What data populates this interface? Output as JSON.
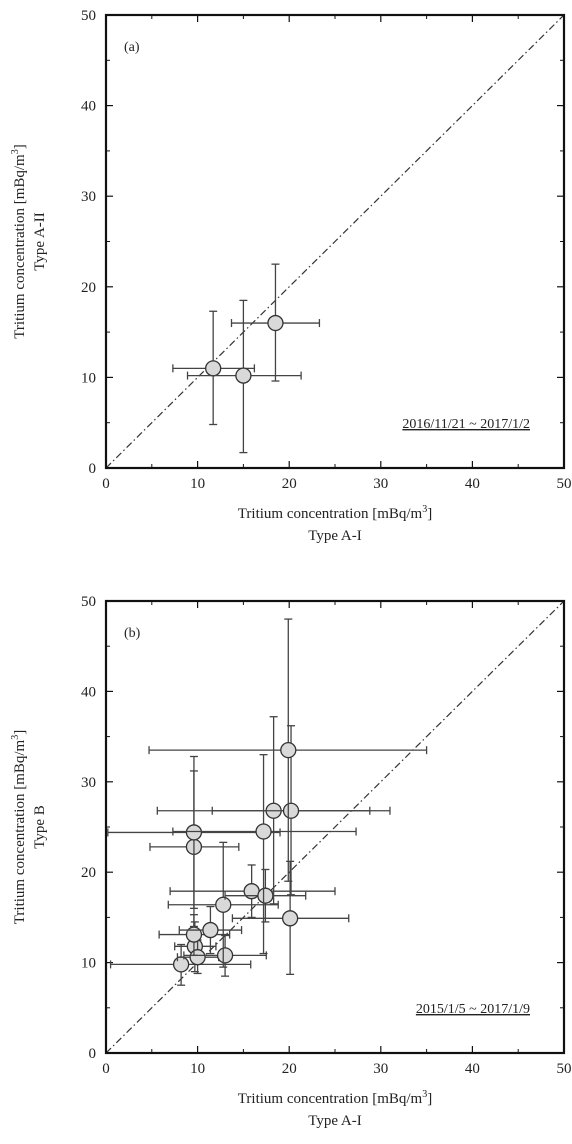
{
  "chart_data": [
    {
      "type": "scatter",
      "panel_label": "(a)",
      "date_range": "2016/11/21 ~ 2017/1/2",
      "xlabel": {
        "main": "Tritium concentration [mBq/m",
        "sup": "3",
        "close": "]",
        "sub": "Type A-I"
      },
      "ylabel": {
        "main": "Tritium concentration [mBq/m",
        "sup": "3",
        "close": "]",
        "sub": "Type A-II"
      },
      "xlim": [
        0,
        50
      ],
      "ylim": [
        0,
        50
      ],
      "xticks": [
        "0",
        "10",
        "20",
        "30",
        "40",
        "50"
      ],
      "yticks": [
        "0",
        "10",
        "20",
        "30",
        "40",
        "50"
      ],
      "reference_line": "y = x (dash-dot)",
      "points": [
        {
          "x": 11.7,
          "y": 11.0,
          "xerr": [
            7.3,
            16.2
          ],
          "yerr": [
            4.8,
            17.3
          ]
        },
        {
          "x": 15.0,
          "y": 10.2,
          "xerr": [
            8.9,
            21.3
          ],
          "yerr": [
            1.7,
            18.5
          ]
        },
        {
          "x": 18.5,
          "y": 16.0,
          "xerr": [
            13.7,
            23.3
          ],
          "yerr": [
            9.6,
            22.5
          ]
        }
      ]
    },
    {
      "type": "scatter",
      "panel_label": "(b)",
      "date_range": "2015/1/5 ~ 2017/1/9",
      "xlabel": {
        "main": "Tritium concentration [mBq/m",
        "sup": "3",
        "close": "]",
        "sub": "Type A-I"
      },
      "ylabel": {
        "main": "Tritium concentration [mBq/m",
        "sup": "3",
        "close": "]",
        "sub": "Type B"
      },
      "xlim": [
        0,
        50
      ],
      "ylim": [
        0,
        50
      ],
      "xticks": [
        "0",
        "10",
        "20",
        "30",
        "40",
        "50"
      ],
      "yticks": [
        "0",
        "10",
        "20",
        "30",
        "40",
        "50"
      ],
      "reference_line": "y = x (dash-dot)",
      "points": [
        {
          "x": 8.2,
          "y": 9.8,
          "xerr": [
            0.5,
            15.8
          ],
          "yerr": [
            7.5,
            12.0
          ]
        },
        {
          "x": 9.7,
          "y": 11.8,
          "xerr": [
            7.5,
            12.0
          ],
          "yerr": [
            9.0,
            14.5
          ]
        },
        {
          "x": 10.0,
          "y": 10.6,
          "xerr": [
            7.8,
            12.3
          ],
          "yerr": [
            8.8,
            12.5
          ]
        },
        {
          "x": 9.6,
          "y": 13.1,
          "xerr": [
            5.8,
            13.5
          ],
          "yerr": [
            10.8,
            15.3
          ]
        },
        {
          "x": 11.4,
          "y": 13.6,
          "xerr": [
            8.0,
            14.8
          ],
          "yerr": [
            11.0,
            16.2
          ]
        },
        {
          "x": 13.0,
          "y": 10.8,
          "xerr": [
            8.5,
            17.5
          ],
          "yerr": [
            8.5,
            13.0
          ]
        },
        {
          "x": 12.8,
          "y": 16.4,
          "xerr": [
            6.8,
            18.8
          ],
          "yerr": [
            9.5,
            23.3
          ]
        },
        {
          "x": 9.6,
          "y": 22.8,
          "xerr": [
            4.8,
            14.5
          ],
          "yerr": [
            14.0,
            31.2
          ]
        },
        {
          "x": 9.6,
          "y": 24.4,
          "xerr": [
            0.2,
            19.0
          ],
          "yerr": [
            16.0,
            32.8
          ]
        },
        {
          "x": 15.9,
          "y": 17.9,
          "xerr": [
            7.0,
            25.0
          ],
          "yerr": [
            15.0,
            20.8
          ]
        },
        {
          "x": 17.4,
          "y": 17.4,
          "xerr": [
            13.0,
            21.8
          ],
          "yerr": [
            14.5,
            20.3
          ]
        },
        {
          "x": 17.2,
          "y": 24.5,
          "xerr": [
            7.3,
            27.3
          ],
          "yerr": [
            11.0,
            33.0
          ]
        },
        {
          "x": 18.3,
          "y": 26.8,
          "xerr": [
            5.6,
            31.0
          ],
          "yerr": [
            16.5,
            37.2
          ]
        },
        {
          "x": 20.2,
          "y": 26.8,
          "xerr": [
            11.6,
            28.8
          ],
          "yerr": [
            17.5,
            36.2
          ]
        },
        {
          "x": 19.9,
          "y": 33.5,
          "xerr": [
            4.7,
            35.0
          ],
          "yerr": [
            19.0,
            48.0
          ]
        },
        {
          "x": 20.1,
          "y": 14.9,
          "xerr": [
            13.8,
            26.5
          ],
          "yerr": [
            8.7,
            21.2
          ]
        }
      ]
    }
  ]
}
